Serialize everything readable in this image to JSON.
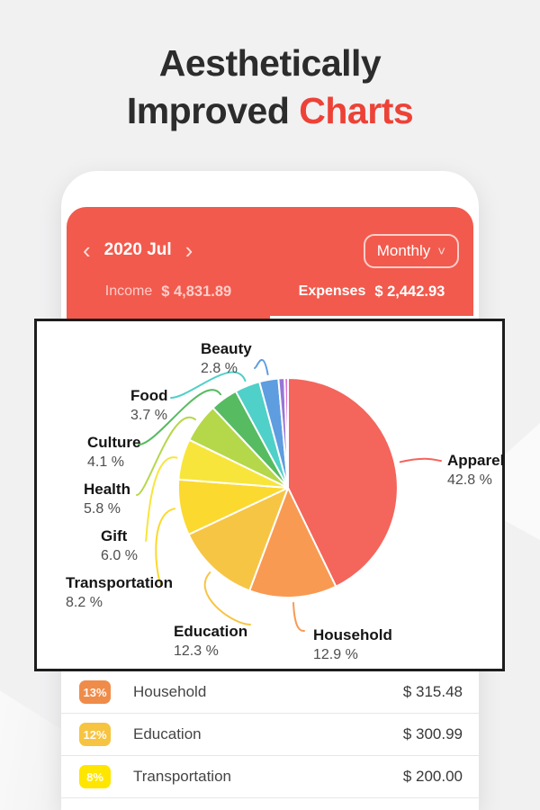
{
  "title": {
    "line1": "Aesthetically",
    "line2_prefix": "Improved",
    "line2_accent": "Charts"
  },
  "colors": {
    "accent_red": "#ed4237",
    "header_red": "#f25a4d",
    "card_border": "#1d1d1d"
  },
  "phone": {
    "date_nav": {
      "prev_icon": "‹",
      "period": "2020 Jul",
      "next_icon": "›"
    },
    "period_selector": {
      "label": "Monthly",
      "chevron": "˅"
    },
    "tabs": [
      {
        "label": "Income",
        "amount": "$ 4,831.89",
        "active": false
      },
      {
        "label": "Expenses",
        "amount": "$ 2,442.93",
        "active": true
      }
    ],
    "expense_list": [
      {
        "badge": "13%",
        "badge_color": "#ef8c4a",
        "category": "Household",
        "amount": "$ 315.48"
      },
      {
        "badge": "12%",
        "badge_color": "#f6c440",
        "category": "Education",
        "amount": "$ 300.99"
      },
      {
        "badge": "8%",
        "badge_color": "#fee600",
        "category": "Transportation",
        "amount": "$ 200.00"
      }
    ]
  },
  "chart_data": {
    "type": "pie",
    "title": "",
    "start_angle_deg": 0,
    "direction": "clockwise",
    "legend_position": "radial-labels",
    "series": [
      {
        "label": "Apparel",
        "value": 42.8,
        "pct_label": "42.8 %",
        "color": "#f4655c"
      },
      {
        "label": "Household",
        "value": 12.9,
        "pct_label": "12.9 %",
        "color": "#f99a52"
      },
      {
        "label": "Education",
        "value": 12.3,
        "pct_label": "12.3 %",
        "color": "#f7c544"
      },
      {
        "label": "Transportation",
        "value": 8.2,
        "pct_label": "8.2 %",
        "color": "#fbd92e"
      },
      {
        "label": "Gift",
        "value": 6.0,
        "pct_label": "6.0 %",
        "color": "#f8e53b"
      },
      {
        "label": "Health",
        "value": 5.8,
        "pct_label": "5.8 %",
        "color": "#b5d74a"
      },
      {
        "label": "Culture",
        "value": 4.1,
        "pct_label": "4.1 %",
        "color": "#57bb61"
      },
      {
        "label": "Food",
        "value": 3.7,
        "pct_label": "3.7 %",
        "color": "#4fd0c8"
      },
      {
        "label": "Beauty",
        "value": 2.8,
        "pct_label": "2.8 %",
        "color": "#5d9de0"
      },
      {
        "label": "",
        "value": 0.9,
        "pct_label": "",
        "color": "#9677d4"
      },
      {
        "label": "",
        "value": 0.5,
        "pct_label": "",
        "color": "#e070d2"
      }
    ]
  }
}
